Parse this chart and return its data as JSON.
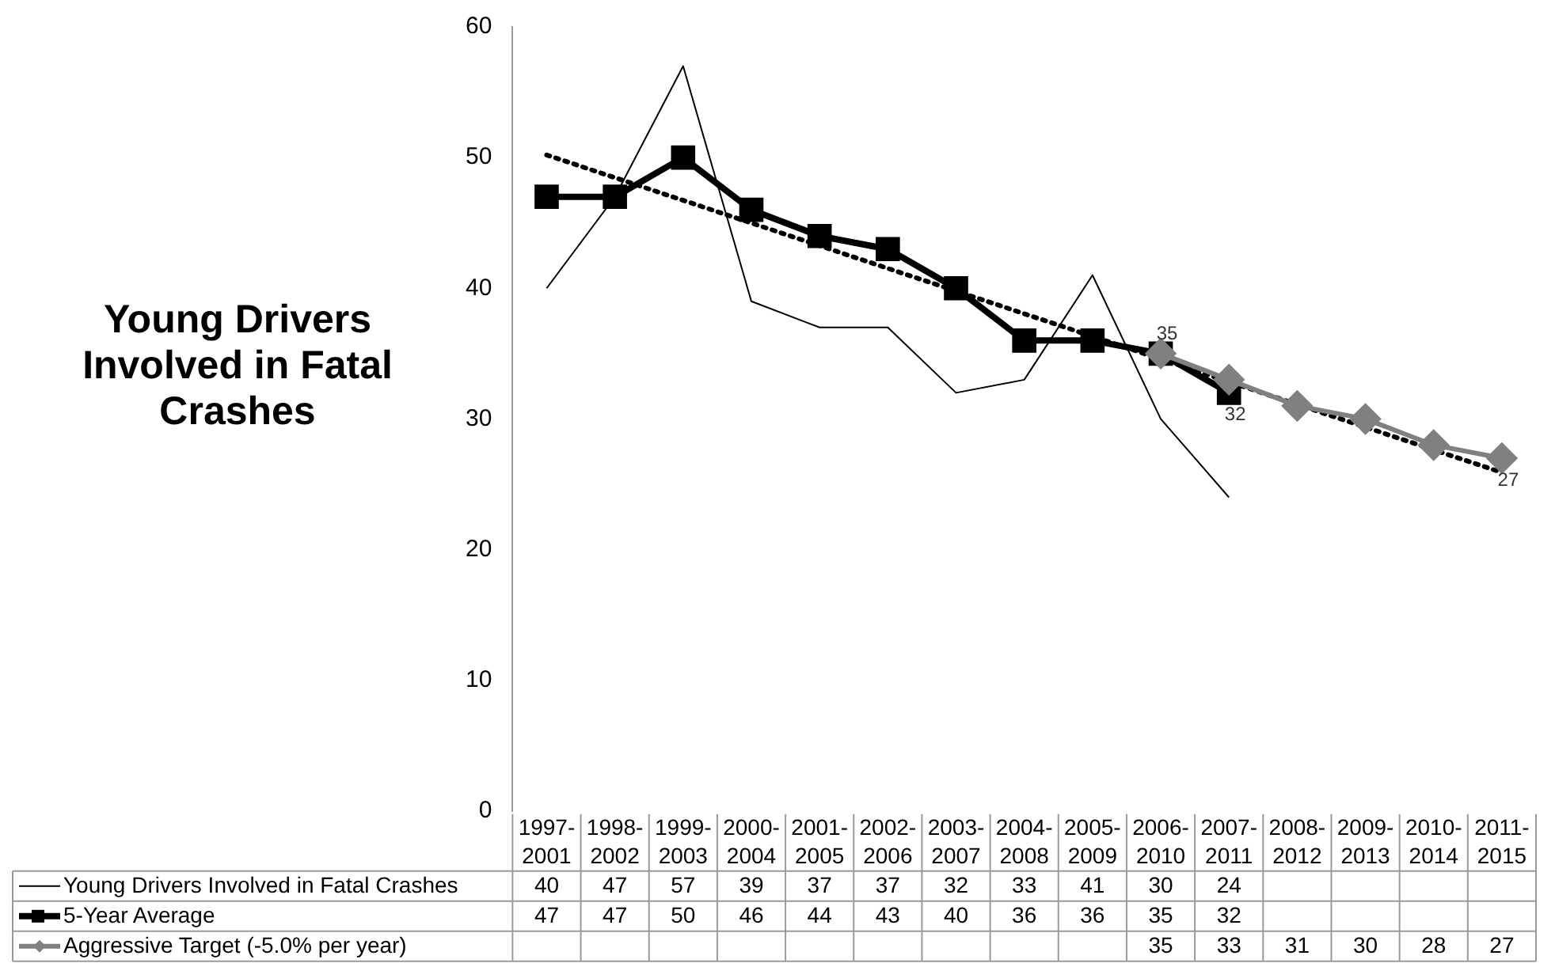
{
  "chart_data": {
    "type": "line",
    "title": "Young Drivers Involved in Fatal Crashes",
    "categories": [
      "1997-2001",
      "1998-2002",
      "1999-2003",
      "2000-2004",
      "2001-2005",
      "2002-2006",
      "2003-2007",
      "2004-2008",
      "2005-2009",
      "2006-2010",
      "2007-2011",
      "2008-2012",
      "2009-2013",
      "2010-2014",
      "2011-2015"
    ],
    "series": [
      {
        "name": "Young Drivers Involved in Fatal Crashes",
        "color": "#000000",
        "marker": "none",
        "values": [
          40,
          47,
          57,
          39,
          37,
          37,
          32,
          33,
          41,
          30,
          24,
          null,
          null,
          null,
          null
        ],
        "value_labels": [
          "40",
          "47",
          "57",
          "39",
          "37",
          "37",
          "32",
          "33",
          "41",
          "30",
          "24",
          null,
          null,
          null,
          null
        ]
      },
      {
        "name": "5-Year Average",
        "color": "#000000",
        "marker": "square",
        "values": [
          47,
          47,
          50,
          46,
          44,
          43,
          40,
          36,
          36,
          35,
          32,
          null,
          null,
          null,
          null
        ],
        "value_labels": [
          "47",
          "47",
          "50",
          "46",
          "44",
          "43",
          "40",
          "36",
          "36",
          "35",
          "32",
          null,
          null,
          null,
          null
        ]
      },
      {
        "name": "Aggressive Target (-5.0% per year)",
        "color": "#808080",
        "marker": "diamond",
        "values": [
          null,
          null,
          null,
          null,
          null,
          null,
          null,
          null,
          null,
          35,
          33,
          31,
          30,
          28,
          27
        ],
        "value_labels": [
          null,
          null,
          null,
          null,
          null,
          null,
          null,
          null,
          null,
          "35",
          "33",
          "31",
          "30",
          "28",
          "27"
        ]
      },
      {
        "type": "line",
        "color": "#000000",
        "marker": "none",
        "line_style": "dotted",
        "x": [
          "1997-2001",
          "2011-2015"
        ],
        "values": [
          50.2,
          25.9
        ]
      }
    ],
    "ylim": [
      0,
      60
    ],
    "yticks": [
      0,
      10,
      20,
      30,
      40,
      50,
      60
    ],
    "grid": false,
    "legend": "bottom",
    "annotations": [
      {
        "text": "35",
        "x": "2006-2010",
        "y": 35
      },
      {
        "text": "32",
        "x": "2007-2011",
        "y": 32
      },
      {
        "text": "27",
        "x": "2011-2015",
        "y": 27
      }
    ]
  }
}
